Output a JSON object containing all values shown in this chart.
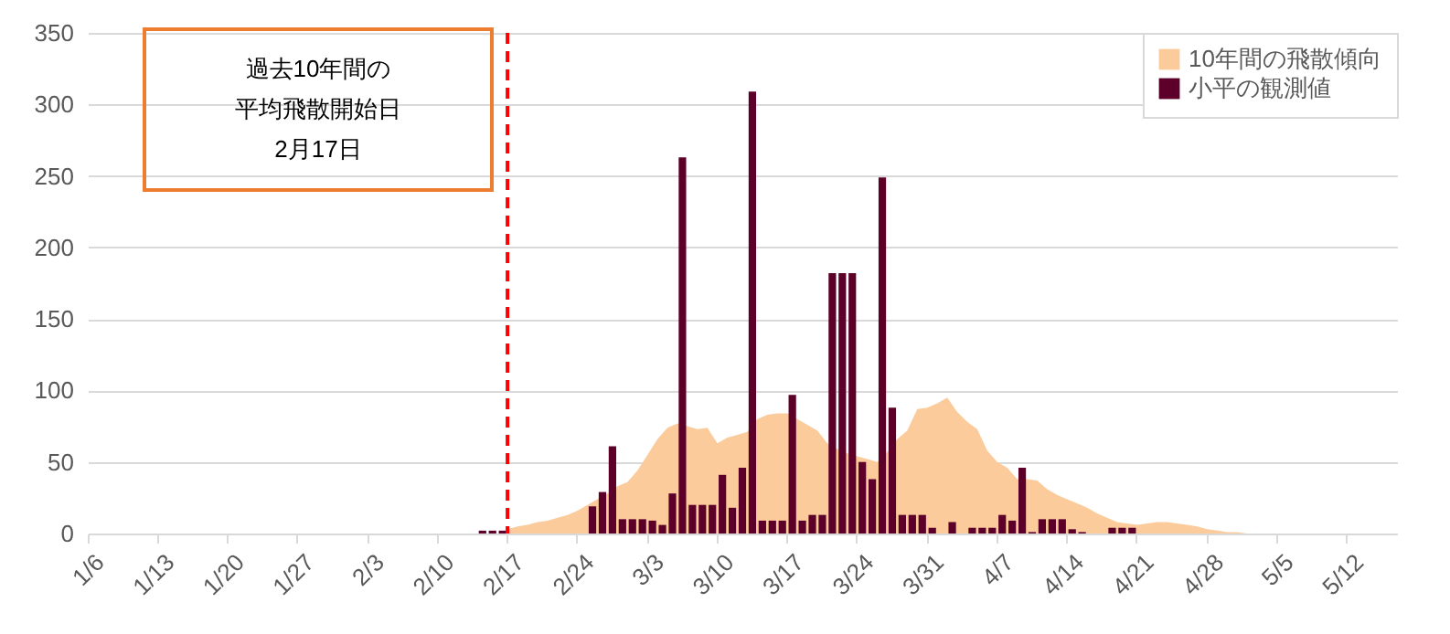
{
  "chart_data": {
    "type": "bar",
    "categories": [
      "1/6",
      null,
      null,
      null,
      null,
      null,
      null,
      "1/13",
      null,
      null,
      null,
      null,
      null,
      null,
      "1/20",
      null,
      null,
      null,
      null,
      null,
      null,
      "1/27",
      null,
      null,
      null,
      null,
      null,
      null,
      "2/3",
      null,
      null,
      null,
      null,
      null,
      null,
      "2/10",
      null,
      null,
      null,
      null,
      null,
      null,
      "2/17",
      null,
      null,
      null,
      null,
      null,
      null,
      "2/24",
      null,
      null,
      null,
      null,
      null,
      null,
      "3/3",
      null,
      null,
      null,
      null,
      null,
      null,
      "3/10",
      null,
      null,
      null,
      null,
      null,
      null,
      "3/17",
      null,
      null,
      null,
      null,
      null,
      null,
      "3/24",
      null,
      null,
      null,
      null,
      null,
      null,
      "3/31",
      null,
      null,
      null,
      null,
      null,
      null,
      "4/7",
      null,
      null,
      null,
      null,
      null,
      null,
      "4/14",
      null,
      null,
      null,
      null,
      null,
      null,
      "4/21",
      null,
      null,
      null,
      null,
      null,
      null,
      "4/28",
      null,
      null,
      null,
      null,
      null,
      null,
      "5/5",
      null,
      null,
      null,
      null,
      null,
      null,
      "5/12",
      null,
      null,
      null,
      null
    ],
    "series": [
      {
        "name": "10年間の飛散傾向",
        "type": "area",
        "color": "#fbcb9c",
        "values": [
          null,
          null,
          null,
          null,
          null,
          null,
          null,
          null,
          null,
          null,
          null,
          null,
          null,
          null,
          null,
          null,
          null,
          null,
          null,
          null,
          null,
          null,
          null,
          null,
          null,
          null,
          null,
          null,
          null,
          null,
          null,
          null,
          null,
          null,
          null,
          null,
          null,
          null,
          null,
          null,
          null,
          null,
          3,
          5,
          6,
          8,
          9,
          11,
          13,
          16,
          20,
          24,
          28,
          33,
          36,
          44,
          55,
          66,
          74,
          77,
          75,
          73,
          74,
          63,
          67,
          69,
          71,
          80,
          83,
          84,
          84,
          80,
          76,
          72,
          63,
          59,
          56,
          54,
          52,
          50,
          57,
          66,
          72,
          87,
          88,
          91,
          95,
          85,
          78,
          73,
          58,
          50,
          46,
          38,
          38,
          37,
          31,
          27,
          24,
          21,
          18,
          14,
          11,
          8,
          7,
          6,
          7,
          8,
          8,
          7,
          6,
          5,
          3,
          2,
          1,
          1,
          0,
          null,
          null,
          null,
          null,
          null,
          null,
          null,
          null,
          null,
          null,
          null,
          null,
          null,
          null
        ]
      },
      {
        "name": "小平の観測値",
        "color": "#5c0029",
        "values": [
          null,
          null,
          null,
          null,
          null,
          null,
          null,
          null,
          null,
          null,
          null,
          null,
          null,
          null,
          null,
          null,
          null,
          null,
          null,
          null,
          null,
          null,
          null,
          null,
          null,
          null,
          null,
          null,
          null,
          null,
          null,
          null,
          null,
          null,
          null,
          null,
          null,
          null,
          null,
          2,
          2,
          2,
          null,
          null,
          null,
          null,
          null,
          null,
          null,
          null,
          19,
          29,
          61,
          10,
          10,
          10,
          9,
          6,
          28,
          263,
          20,
          20,
          20,
          41,
          18,
          46,
          309,
          9,
          9,
          9,
          97,
          9,
          13,
          13,
          182,
          182,
          182,
          50,
          38,
          249,
          88,
          13,
          13,
          13,
          4,
          null,
          8,
          null,
          4,
          4,
          4,
          13,
          9,
          46,
          1,
          10,
          10,
          10,
          3,
          1,
          null,
          null,
          4,
          4,
          4,
          null,
          null,
          null,
          null,
          null,
          null,
          null,
          null,
          null,
          null,
          null,
          null,
          null,
          null,
          null,
          null,
          null,
          null,
          null,
          null,
          null,
          null,
          null,
          null,
          null,
          null
        ]
      }
    ],
    "ylim": [
      0,
      350
    ],
    "yticks": [
      0,
      50,
      100,
      150,
      200,
      250,
      300,
      350
    ],
    "grid": "y",
    "legend": "top right",
    "ref_lines": [
      {
        "axis": "x",
        "value": "2/17",
        "color": "#ff0000",
        "line_style": "dashed"
      }
    ],
    "annotations": [
      "過去10年間の",
      "平均飛散開始日",
      "2月17日"
    ]
  }
}
